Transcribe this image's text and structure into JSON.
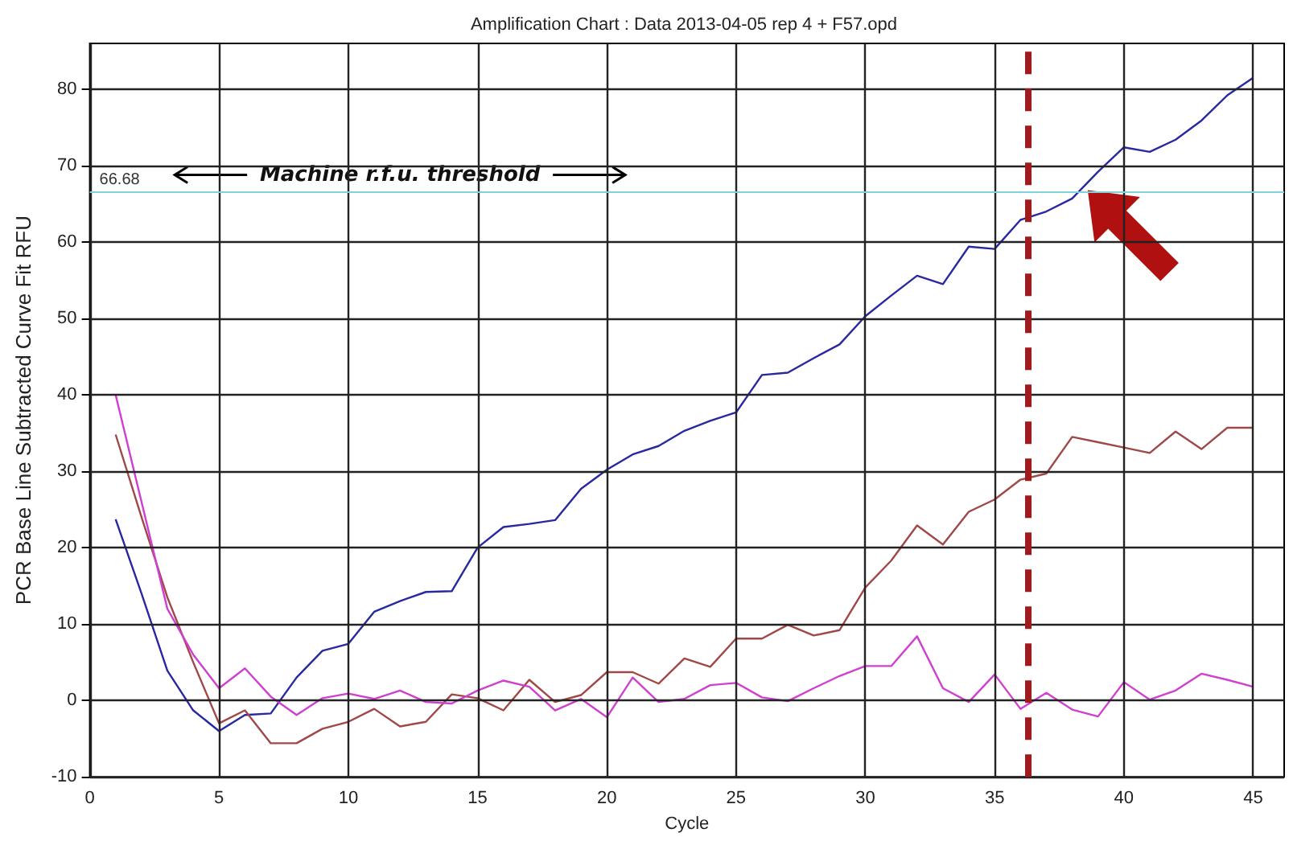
{
  "chart_data": {
    "type": "line",
    "title": "Amplification Chart : Data 2013-04-05 rep 4 + F57.opd",
    "xlabel": "Cycle",
    "ylabel": "PCR Base Line Subtracted Curve Fit RFU",
    "x": [
      1,
      2,
      3,
      4,
      5,
      6,
      7,
      8,
      9,
      10,
      11,
      12,
      13,
      14,
      15,
      16,
      17,
      18,
      19,
      20,
      21,
      22,
      23,
      24,
      25,
      26,
      27,
      28,
      29,
      30,
      31,
      32,
      33,
      34,
      35,
      36,
      37,
      38,
      39,
      40,
      41,
      42,
      43,
      44,
      45
    ],
    "series": [
      {
        "color": "#2828a0",
        "values": [
          23.7,
          14,
          3.9,
          -1.3,
          -4,
          -1.9,
          -1.7,
          3,
          6.5,
          7.4,
          11.6,
          13,
          14.2,
          14.3,
          20,
          22.7,
          23.1,
          23.6,
          27.7,
          30.2,
          32.2,
          33.3,
          35.3,
          36.6,
          37.7,
          42.6,
          42.9,
          44.8,
          46.6,
          50.3,
          53,
          55.6,
          54.5,
          59.4,
          59.1,
          62.9,
          64,
          65.7,
          69.2,
          72.4,
          71.8,
          73.4,
          75.9,
          79.2,
          81.5
        ]
      },
      {
        "color": "#a04848",
        "values": [
          34.8,
          24,
          13.5,
          5,
          -3,
          -1.3,
          -5.6,
          -5.6,
          -3.7,
          -2.8,
          -1.1,
          -3.4,
          -2.8,
          0.8,
          0.3,
          -1.3,
          2.7,
          -0.2,
          0.7,
          3.7,
          3.7,
          2.2,
          5.5,
          4.4,
          8.1,
          8.1,
          9.9,
          8.5,
          9.2,
          14.8,
          18.3,
          22.9,
          20.4,
          24.7,
          26.3,
          28.9,
          29.7,
          34.5,
          33.8,
          33.1,
          32.4,
          35.2,
          32.9,
          35.7,
          35.7
        ]
      },
      {
        "color": "#d040d0",
        "values": [
          40,
          26,
          12,
          6,
          1.6,
          4.2,
          0.5,
          -1.9,
          0.3,
          0.9,
          0.2,
          1.3,
          -0.2,
          -0.4,
          1.3,
          2.6,
          1.8,
          -1.3,
          0.2,
          -2.2,
          3,
          -0.2,
          0.2,
          2,
          2.3,
          0.4,
          -0.1,
          1.6,
          3.2,
          4.5,
          4.5,
          8.4,
          1.6,
          -0.2,
          3.4,
          -1.1,
          1,
          -1.2,
          -2.1,
          2.4,
          0.1,
          1.3,
          3.5,
          2.7,
          1.8
        ]
      }
    ],
    "xlim": [
      0,
      46.2
    ],
    "xticks": [
      0,
      5,
      10,
      15,
      20,
      25,
      30,
      35,
      40,
      45
    ],
    "ylim": [
      -10,
      86
    ],
    "yticks": [
      -10,
      0,
      10,
      20,
      30,
      40,
      50,
      60,
      70,
      80
    ],
    "grid": true,
    "marker": "none",
    "line_style": "solid",
    "ref_lines": [
      {
        "axis": "y",
        "value": 66.68,
        "label": "66.68",
        "color": "#80d0e0",
        "line_style": "solid"
      },
      {
        "axis": "x",
        "value": 36.3,
        "label": null,
        "color": "#a01c1c",
        "line_style": "dashed"
      }
    ],
    "annotations": [
      {
        "text": "Machine r.f.u. threshold",
        "x": 12,
        "y": 66.68
      }
    ]
  }
}
